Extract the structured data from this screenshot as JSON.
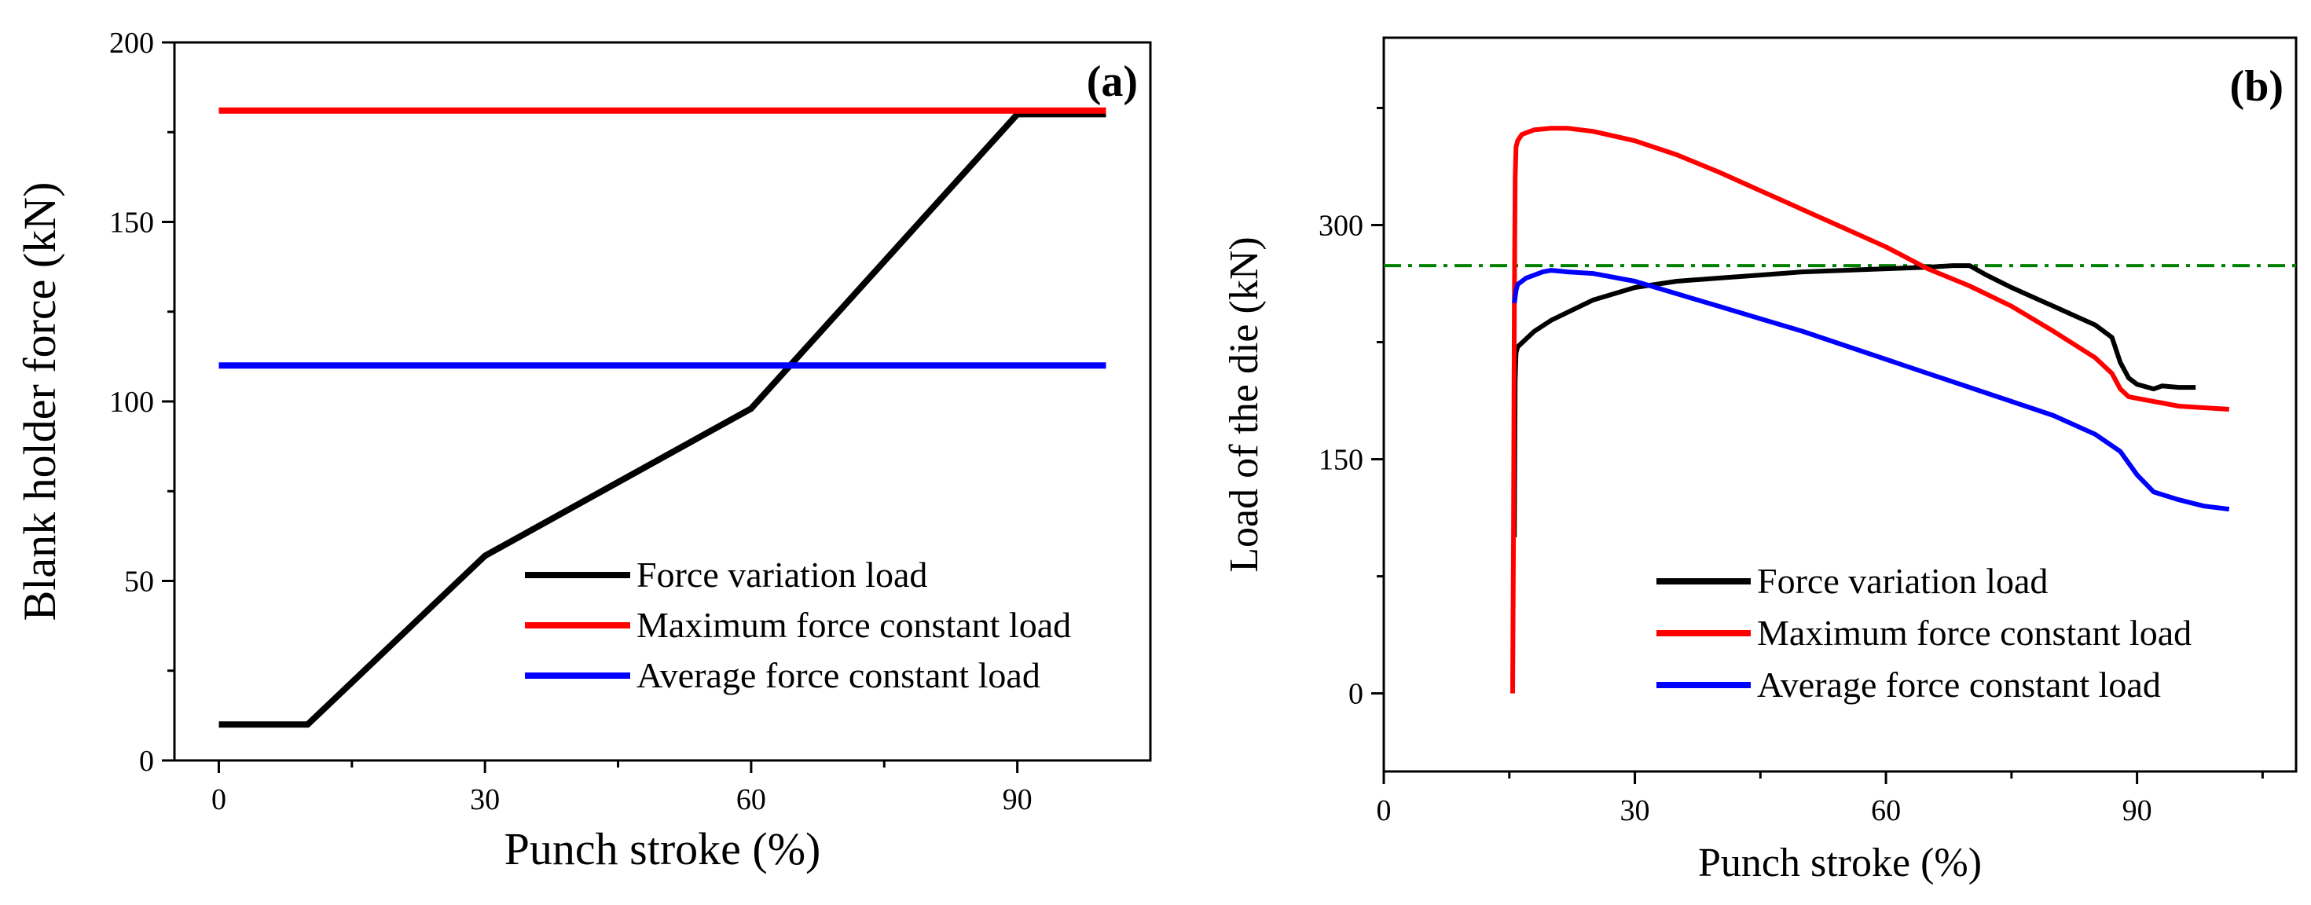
{
  "chart_data": [
    {
      "type": "line",
      "panel_label": "(a)",
      "xlabel": "Punch stroke (%)",
      "ylabel": "Blank holder force (kN)",
      "xlim": [
        -5,
        105
      ],
      "ylim": [
        0,
        200
      ],
      "xticks": [
        0,
        30,
        60,
        90
      ],
      "yticks": [
        0,
        50,
        100,
        150,
        200
      ],
      "legend_position": "bottom-right",
      "series": [
        {
          "name": "Force variation load",
          "color": "#000000",
          "x": [
            0,
            10,
            30,
            60,
            90,
            100
          ],
          "y": [
            10,
            10,
            57,
            98,
            180,
            180
          ]
        },
        {
          "name": "Maximum force constant load",
          "color": "#ff0000",
          "x": [
            0,
            100
          ],
          "y": [
            181,
            181
          ]
        },
        {
          "name": "Average force constant load",
          "color": "#0000ff",
          "x": [
            0,
            100
          ],
          "y": [
            110,
            110
          ]
        }
      ]
    },
    {
      "type": "line",
      "panel_label": "(b)",
      "xlabel": "Punch stroke (%)",
      "ylabel": "Load of the die (kN)",
      "xlim": [
        0,
        109
      ],
      "ylim": [
        -50,
        420
      ],
      "xticks": [
        0,
        30,
        60,
        90
      ],
      "yticks": [
        0,
        150,
        300
      ],
      "legend_position": "bottom-right",
      "reference_line": {
        "y": 274,
        "color": "#008000",
        "style": "dash-dot"
      },
      "series": [
        {
          "name": "Force variation load",
          "color": "#000000",
          "x": [
            15.6,
            15.7,
            15.8,
            16,
            18,
            20,
            25,
            30,
            35,
            40,
            45,
            50,
            55,
            60,
            65,
            68,
            70,
            72,
            75,
            80,
            85,
            87,
            88,
            89,
            90,
            92,
            93,
            95,
            97
          ],
          "y": [
            100,
            200,
            218,
            222,
            232,
            239,
            252,
            260,
            264,
            266,
            268,
            270,
            271,
            272,
            273,
            274,
            274,
            268,
            260,
            248,
            236,
            228,
            212,
            202,
            198,
            195,
            197,
            196,
            196
          ]
        },
        {
          "name": "Maximum force constant load",
          "color": "#ff0000",
          "x": [
            15.4,
            15.5,
            15.6,
            15.7,
            15.8,
            16,
            16.5,
            18,
            20,
            22,
            25,
            30,
            35,
            40,
            45,
            50,
            55,
            60,
            65,
            70,
            75,
            80,
            85,
            87,
            88,
            89,
            90,
            93,
            95,
            98,
            101
          ],
          "y": [
            0,
            100,
            250,
            330,
            350,
            354,
            358,
            361,
            362,
            362,
            360,
            354,
            345,
            334,
            322,
            310,
            298,
            286,
            272,
            261,
            248,
            232,
            215,
            205,
            195,
            190,
            189,
            186,
            184,
            183,
            182
          ]
        },
        {
          "name": "Average force constant load",
          "color": "#0000ff",
          "x": [
            15.6,
            15.8,
            16,
            17,
            18,
            19,
            20,
            22,
            25,
            30,
            35,
            40,
            45,
            50,
            55,
            60,
            65,
            70,
            75,
            80,
            85,
            88,
            90,
            92,
            95,
            98,
            101
          ],
          "y": [
            250,
            258,
            262,
            266,
            268,
            270,
            271,
            270,
            269,
            264,
            256,
            248,
            240,
            232,
            223,
            214,
            205,
            196,
            187,
            178,
            166,
            155,
            140,
            129,
            124,
            120,
            118
          ]
        }
      ]
    }
  ]
}
